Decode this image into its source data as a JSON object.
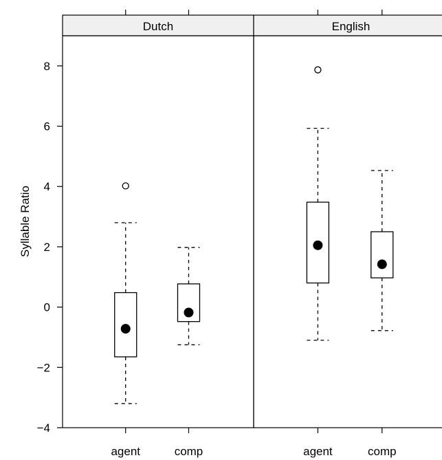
{
  "chart_data": {
    "type": "boxplot",
    "ylabel": "Syllable Ratio",
    "ylim": [
      -4,
      9
    ],
    "y_ticks": [
      -4,
      -2,
      0,
      2,
      4,
      6,
      8
    ],
    "y_tick_labels": [
      "−4",
      "−2",
      "0",
      "2",
      "4",
      "6",
      "8"
    ],
    "categories": [
      "agent",
      "comp"
    ],
    "colors": {
      "strip": "#f0f0f0",
      "ink": "#000000"
    },
    "panels": [
      {
        "strip": "Dutch",
        "boxes": [
          {
            "category": "agent",
            "whisker_low": -3.2,
            "q1": -1.65,
            "median": -0.72,
            "q3": 0.48,
            "whisker_high": 2.8,
            "outliers": [
              4.02
            ]
          },
          {
            "category": "comp",
            "whisker_low": -1.25,
            "q1": -0.48,
            "median": -0.18,
            "q3": 0.77,
            "whisker_high": 1.98,
            "outliers": []
          }
        ]
      },
      {
        "strip": "English",
        "boxes": [
          {
            "category": "agent",
            "whisker_low": -1.1,
            "q1": 0.8,
            "median": 2.05,
            "q3": 3.48,
            "whisker_high": 5.93,
            "outliers": [
              7.87
            ]
          },
          {
            "category": "comp",
            "whisker_low": -0.78,
            "q1": 0.97,
            "median": 1.42,
            "q3": 2.5,
            "whisker_high": 4.53,
            "outliers": []
          }
        ]
      }
    ]
  }
}
